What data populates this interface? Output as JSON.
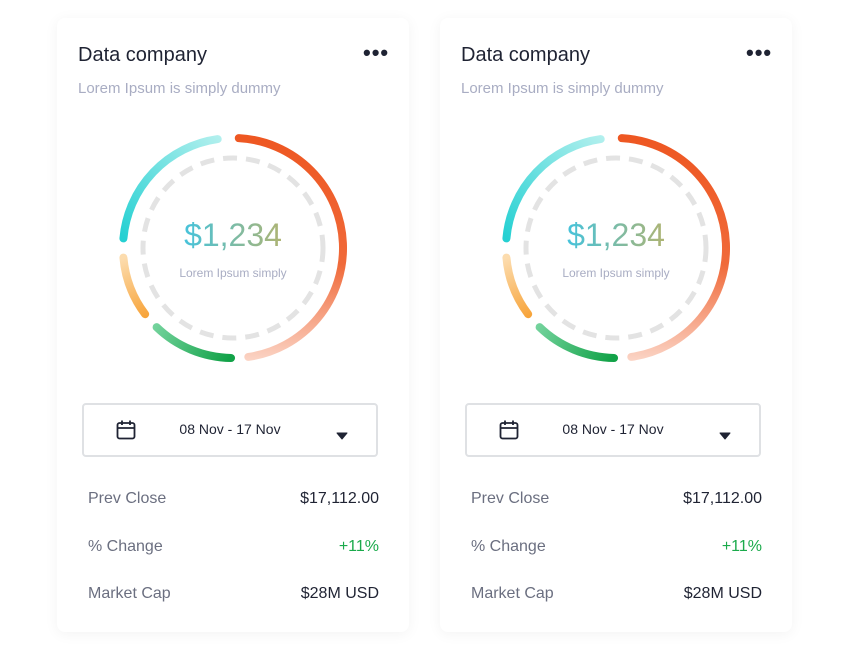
{
  "cards": [
    {
      "title": "Data company",
      "subtitle": "Lorem Ipsum is simply dummy",
      "amount": "$1,234",
      "amount_caption": "Lorem Ipsum simply",
      "date_range": "08 Nov - 17 Nov",
      "rows": [
        {
          "label": "Prev Close",
          "value": "$17,112.00"
        },
        {
          "label": "% Change",
          "value": "+11%"
        },
        {
          "label": "Market Cap",
          "value": "$28M USD"
        }
      ]
    },
    {
      "title": "Data company",
      "subtitle": "Lorem Ipsum is simply dummy",
      "amount": "$1,234",
      "amount_caption": "Lorem Ipsum simply",
      "date_range": "08 Nov - 17 Nov",
      "rows": [
        {
          "label": "Prev Close",
          "value": "$17,112.00"
        },
        {
          "label": "% Change",
          "value": "+11%"
        },
        {
          "label": "Market Cap",
          "value": "$28M USD"
        }
      ]
    }
  ]
}
